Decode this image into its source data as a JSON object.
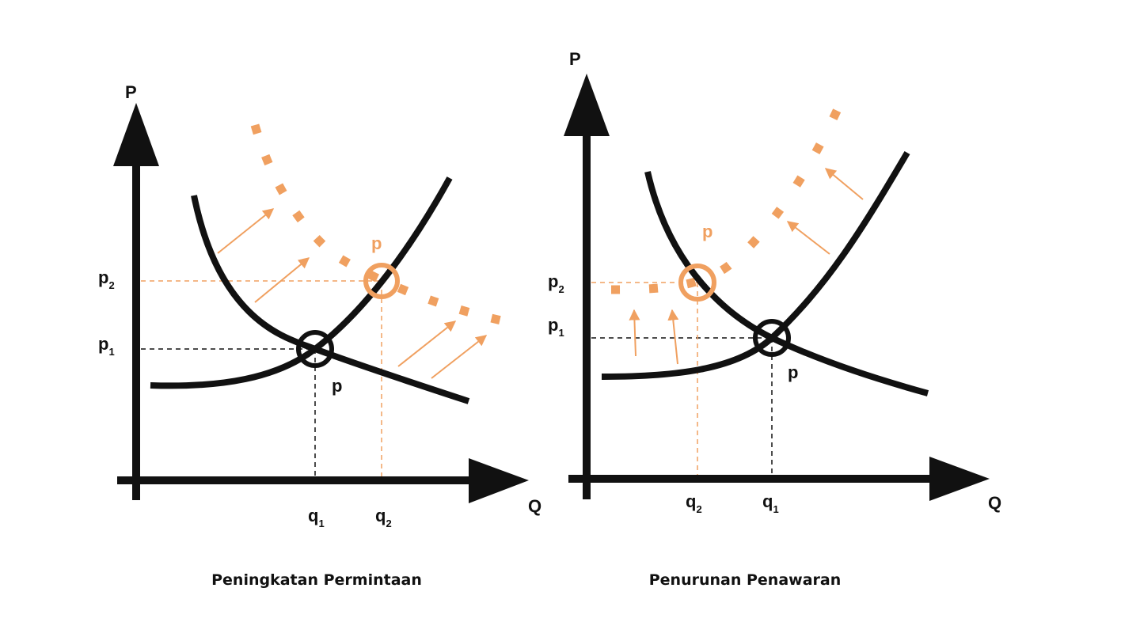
{
  "colors": {
    "ink": "#111111",
    "accent": "#f0a060"
  },
  "left_panel": {
    "axis_p": "P",
    "axis_q": "Q",
    "p1": "p",
    "p1_sub": "1",
    "p2": "p",
    "p2_sub": "2",
    "q1": "q",
    "q1_sub": "1",
    "q2": "q",
    "q2_sub": "2",
    "eq_label": "p",
    "new_eq_label": "p",
    "caption": "Peningkatan Permintaan"
  },
  "right_panel": {
    "axis_p": "P",
    "axis_q": "Q",
    "p1": "p",
    "p1_sub": "1",
    "p2": "p",
    "p2_sub": "2",
    "q1": "q",
    "q1_sub": "1",
    "q2": "q",
    "q2_sub": "2",
    "eq_label": "p",
    "new_eq_label": "p",
    "caption": "Penurunan Penawaran"
  }
}
